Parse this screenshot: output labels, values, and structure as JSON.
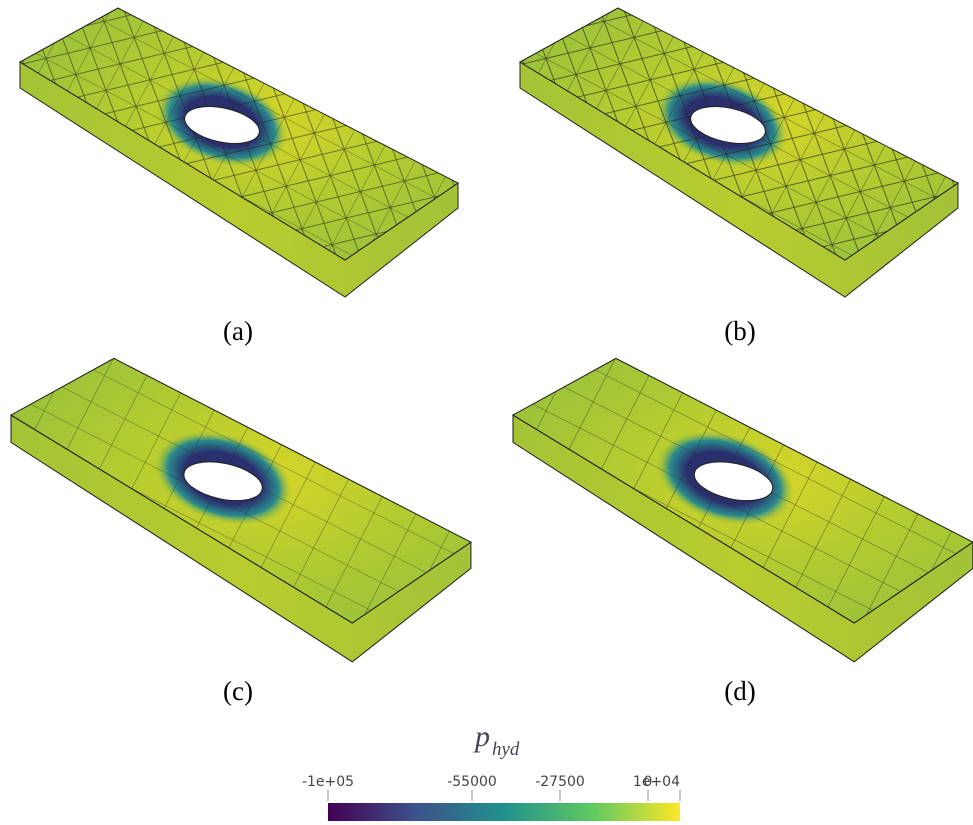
{
  "panels": [
    {
      "label": "(a)"
    },
    {
      "label": "(b)"
    },
    {
      "label": "(c)"
    },
    {
      "label": "(d)"
    }
  ],
  "colorbar": {
    "title": "p",
    "subscript": "hyd",
    "range": [
      -100000,
      10000
    ],
    "ticks": [
      {
        "value": -100000,
        "label": "-1e+05"
      },
      -55000,
      -27500,
      0,
      {
        "value": 10000,
        "label": "1e+04"
      }
    ],
    "colors": [
      "#440154",
      "#3b528b",
      "#21918c",
      "#5ec962",
      "#fde725"
    ]
  }
}
